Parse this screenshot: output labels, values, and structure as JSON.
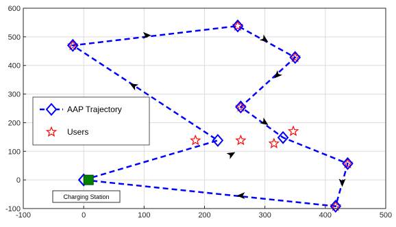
{
  "chart_data": {
    "type": "line",
    "title": "",
    "xlabel": "",
    "ylabel": "",
    "xlim": [
      -100,
      500
    ],
    "ylim": [
      -100,
      600
    ],
    "xticks": [
      -100,
      0,
      100,
      200,
      300,
      400,
      500
    ],
    "yticks": [
      -100,
      0,
      100,
      200,
      300,
      400,
      500,
      600
    ],
    "x_tick_labels": [
      "-100",
      "0",
      "100",
      "200",
      "300",
      "400",
      "500"
    ],
    "y_tick_labels": [
      "-100",
      "0",
      "100",
      "200",
      "300",
      "400",
      "500",
      "600"
    ],
    "grid": true,
    "legend_position": "center-left",
    "series": [
      {
        "name": "AAP Trajectory",
        "color": "#0000ff",
        "marker": "diamond",
        "x": [
          0,
          222,
          -18,
          255,
          350,
          260,
          330,
          437,
          417,
          0
        ],
        "y": [
          0,
          138,
          470,
          538,
          428,
          255,
          148,
          57,
          -92,
          0
        ]
      },
      {
        "name": "Users",
        "color": "#ff0000",
        "marker": "star",
        "x": [
          -18,
          255,
          350,
          260,
          437,
          417,
          185,
          260,
          315,
          347
        ],
        "y": [
          470,
          538,
          428,
          255,
          57,
          -92,
          138,
          138,
          127,
          170
        ]
      }
    ],
    "direction_arrows": [
      {
        "x": 245,
        "y": 90,
        "dir": "up-right"
      },
      {
        "x": 82,
        "y": 330,
        "dir": "up-left"
      },
      {
        "x": 105,
        "y": 505,
        "dir": "right"
      },
      {
        "x": 300,
        "y": 490,
        "dir": "down-right"
      },
      {
        "x": 320,
        "y": 365,
        "dir": "down-left"
      },
      {
        "x": 300,
        "y": 200,
        "dir": "down-right"
      },
      {
        "x": 428,
        "y": -10,
        "dir": "down"
      },
      {
        "x": 260,
        "y": -55,
        "dir": "left"
      }
    ],
    "charging_station": {
      "x": 8,
      "y": 0,
      "color": "#008000"
    },
    "annotation": "Charging Station"
  }
}
